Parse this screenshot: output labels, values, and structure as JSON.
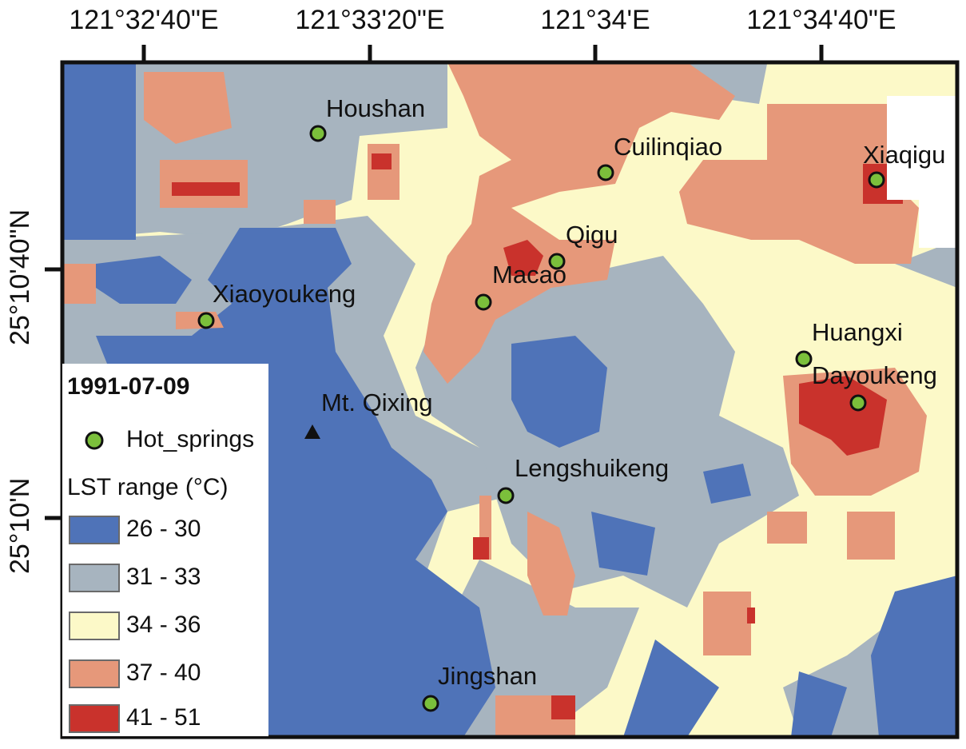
{
  "axis_labels": {
    "top": [
      "121°32'40\"E",
      "121°33'20\"E",
      "121°34'E",
      "121°34'40\"E"
    ],
    "left": [
      "25°10'40\"N",
      "25°10'N"
    ]
  },
  "sites": [
    {
      "name": "Houshan",
      "kind": "hot-spring"
    },
    {
      "name": "Cuilinqiao",
      "kind": "hot-spring"
    },
    {
      "name": "Xiaqigu",
      "kind": "hot-spring"
    },
    {
      "name": "Qigu",
      "kind": "hot-spring"
    },
    {
      "name": "Macao",
      "kind": "hot-spring"
    },
    {
      "name": "Xiaoyoukeng",
      "kind": "hot-spring"
    },
    {
      "name": "Huangxi",
      "kind": "hot-spring"
    },
    {
      "name": "Dayoukeng",
      "kind": "hot-spring"
    },
    {
      "name": "Mt. Qixing",
      "kind": "peak"
    },
    {
      "name": "Lengshuikeng",
      "kind": "hot-spring"
    },
    {
      "name": "Jingshan",
      "kind": "hot-spring"
    }
  ],
  "legend": {
    "date": "1991-07-09",
    "point_label": "Hot_springs",
    "range_title": "LST range (°C)",
    "classes": [
      {
        "label": "26 - 30",
        "color": "#4f73b8"
      },
      {
        "label": "31 - 33",
        "color": "#a7b4bf"
      },
      {
        "label": "34 - 36",
        "color": "#fcf9c8"
      },
      {
        "label": "37 - 40",
        "color": "#e6987a"
      },
      {
        "label": "41 - 51",
        "color": "#c9322c"
      }
    ]
  },
  "colors": {
    "hot_spring_marker": "#7bbf3b",
    "peak_marker": "#111111",
    "frame": "#111111",
    "no_data": "#ffffff"
  }
}
